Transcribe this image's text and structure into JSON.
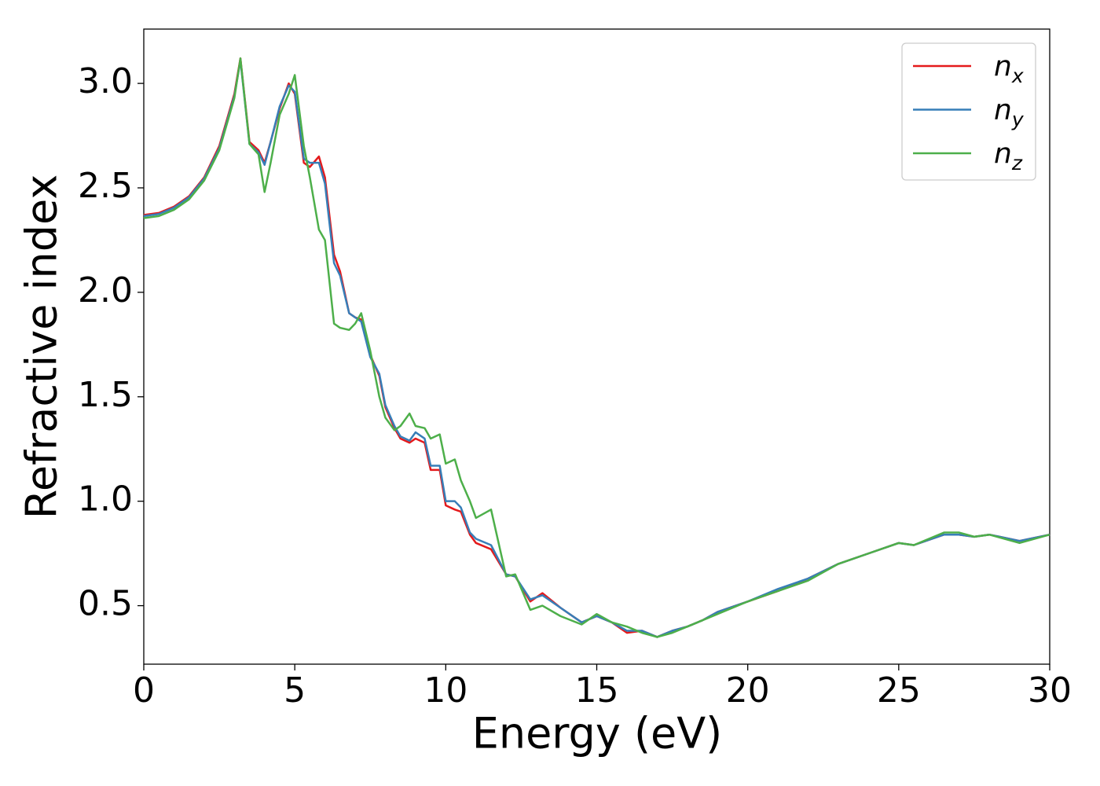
{
  "chart_data": {
    "type": "line",
    "xlabel": "Energy (eV)",
    "ylabel": "Refractive index",
    "x": [
      0,
      0.5,
      1,
      1.5,
      2,
      2.5,
      3,
      3.2,
      3.5,
      3.8,
      4,
      4.2,
      4.5,
      4.8,
      5,
      5.3,
      5.5,
      5.8,
      6,
      6.3,
      6.5,
      6.8,
      7,
      7.2,
      7.5,
      7.8,
      8,
      8.3,
      8.5,
      8.8,
      9,
      9.3,
      9.5,
      9.8,
      10,
      10.3,
      10.5,
      10.8,
      11,
      11.5,
      12,
      12.3,
      12.8,
      13.2,
      13.8,
      14.5,
      15,
      15.5,
      16,
      16.5,
      17,
      17.5,
      18,
      18.5,
      19,
      20,
      21,
      22,
      23,
      24,
      25,
      25.5,
      26.5,
      27,
      27.5,
      28,
      29,
      30
    ],
    "series": [
      {
        "name": "nx",
        "color": "#e41a1c",
        "values": [
          2.37,
          2.38,
          2.41,
          2.46,
          2.55,
          2.7,
          2.95,
          3.12,
          2.72,
          2.68,
          2.62,
          2.72,
          2.88,
          3.0,
          2.95,
          2.62,
          2.6,
          2.65,
          2.55,
          2.18,
          2.1,
          1.9,
          1.88,
          1.87,
          1.7,
          1.6,
          1.45,
          1.35,
          1.3,
          1.28,
          1.3,
          1.28,
          1.15,
          1.15,
          0.98,
          0.96,
          0.95,
          0.84,
          0.8,
          0.77,
          0.65,
          0.64,
          0.52,
          0.56,
          0.49,
          0.42,
          0.45,
          0.42,
          0.37,
          0.38,
          0.35,
          0.38,
          0.4,
          0.43,
          0.47,
          0.52,
          0.57,
          0.63,
          0.7,
          0.75,
          0.8,
          0.79,
          0.84,
          0.84,
          0.83,
          0.84,
          0.81,
          0.84
        ]
      },
      {
        "name": "ny",
        "color": "#377eb8",
        "values": [
          2.365,
          2.375,
          2.405,
          2.455,
          2.545,
          2.69,
          2.94,
          3.11,
          2.71,
          2.67,
          2.61,
          2.72,
          2.89,
          2.99,
          2.96,
          2.64,
          2.62,
          2.62,
          2.52,
          2.14,
          2.08,
          1.9,
          1.88,
          1.86,
          1.69,
          1.61,
          1.46,
          1.36,
          1.31,
          1.29,
          1.33,
          1.3,
          1.17,
          1.17,
          1.0,
          1.0,
          0.97,
          0.85,
          0.82,
          0.79,
          0.65,
          0.64,
          0.53,
          0.55,
          0.49,
          0.42,
          0.45,
          0.42,
          0.38,
          0.38,
          0.35,
          0.38,
          0.4,
          0.43,
          0.47,
          0.52,
          0.58,
          0.63,
          0.7,
          0.75,
          0.8,
          0.79,
          0.84,
          0.84,
          0.83,
          0.84,
          0.81,
          0.84
        ]
      },
      {
        "name": "nz",
        "color": "#4daf4a",
        "values": [
          2.355,
          2.365,
          2.395,
          2.445,
          2.535,
          2.68,
          2.93,
          3.12,
          2.71,
          2.66,
          2.48,
          2.62,
          2.85,
          2.95,
          3.04,
          2.7,
          2.55,
          2.3,
          2.25,
          1.85,
          1.83,
          1.82,
          1.85,
          1.9,
          1.72,
          1.5,
          1.4,
          1.34,
          1.36,
          1.42,
          1.36,
          1.35,
          1.3,
          1.32,
          1.18,
          1.2,
          1.1,
          1.0,
          0.92,
          0.96,
          0.64,
          0.65,
          0.48,
          0.5,
          0.45,
          0.41,
          0.46,
          0.42,
          0.4,
          0.37,
          0.35,
          0.37,
          0.4,
          0.43,
          0.46,
          0.52,
          0.57,
          0.62,
          0.7,
          0.75,
          0.8,
          0.79,
          0.85,
          0.85,
          0.83,
          0.84,
          0.8,
          0.84
        ]
      }
    ],
    "xlim": [
      0,
      30
    ],
    "ylim": [
      0.22,
      3.26
    ],
    "xticks": [
      0,
      5,
      10,
      15,
      20,
      25,
      30
    ],
    "yticks": [
      0.5,
      {
        "value": 1,
        "label": "1.0"
      },
      1.5,
      {
        "value": 2,
        "label": "2.0"
      },
      2.5,
      {
        "value": 3,
        "label": "3.0"
      }
    ],
    "legend": "upper right"
  }
}
